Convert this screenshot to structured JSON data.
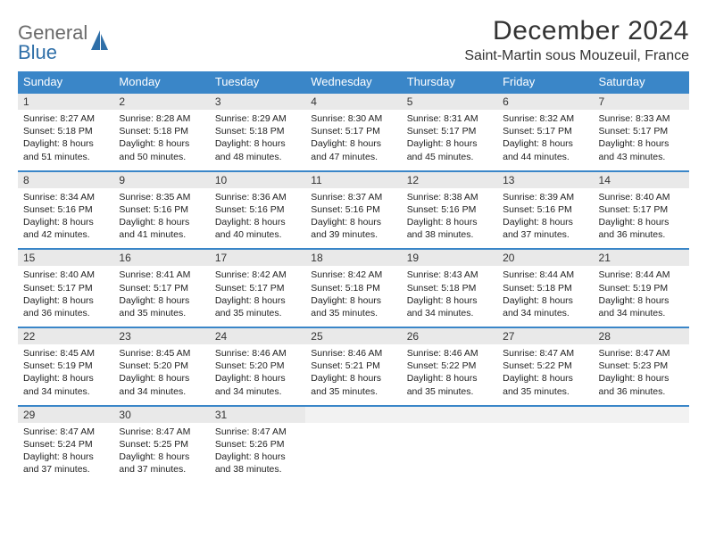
{
  "logo": {
    "text1": "General",
    "text2": "Blue"
  },
  "title": "December 2024",
  "location": "Saint-Martin sous Mouzeuil, France",
  "colors": {
    "header_bg": "#3a86c8",
    "header_text": "#ffffff",
    "daynum_bg": "#e9e9e9",
    "week_border": "#3a86c8",
    "logo_gray": "#6b6b6b",
    "logo_blue": "#2f6fa8",
    "body_text": "#222222"
  },
  "typography": {
    "title_fontsize": 30,
    "location_fontsize": 16,
    "dow_fontsize": 13,
    "daynum_fontsize": 12,
    "body_fontsize": 10.5,
    "font_family": "Arial"
  },
  "dow": [
    "Sunday",
    "Monday",
    "Tuesday",
    "Wednesday",
    "Thursday",
    "Friday",
    "Saturday"
  ],
  "weeks": [
    [
      {
        "n": "1",
        "sr": "Sunrise: 8:27 AM",
        "ss": "Sunset: 5:18 PM",
        "dl": "Daylight: 8 hours and 51 minutes."
      },
      {
        "n": "2",
        "sr": "Sunrise: 8:28 AM",
        "ss": "Sunset: 5:18 PM",
        "dl": "Daylight: 8 hours and 50 minutes."
      },
      {
        "n": "3",
        "sr": "Sunrise: 8:29 AM",
        "ss": "Sunset: 5:18 PM",
        "dl": "Daylight: 8 hours and 48 minutes."
      },
      {
        "n": "4",
        "sr": "Sunrise: 8:30 AM",
        "ss": "Sunset: 5:17 PM",
        "dl": "Daylight: 8 hours and 47 minutes."
      },
      {
        "n": "5",
        "sr": "Sunrise: 8:31 AM",
        "ss": "Sunset: 5:17 PM",
        "dl": "Daylight: 8 hours and 45 minutes."
      },
      {
        "n": "6",
        "sr": "Sunrise: 8:32 AM",
        "ss": "Sunset: 5:17 PM",
        "dl": "Daylight: 8 hours and 44 minutes."
      },
      {
        "n": "7",
        "sr": "Sunrise: 8:33 AM",
        "ss": "Sunset: 5:17 PM",
        "dl": "Daylight: 8 hours and 43 minutes."
      }
    ],
    [
      {
        "n": "8",
        "sr": "Sunrise: 8:34 AM",
        "ss": "Sunset: 5:16 PM",
        "dl": "Daylight: 8 hours and 42 minutes."
      },
      {
        "n": "9",
        "sr": "Sunrise: 8:35 AM",
        "ss": "Sunset: 5:16 PM",
        "dl": "Daylight: 8 hours and 41 minutes."
      },
      {
        "n": "10",
        "sr": "Sunrise: 8:36 AM",
        "ss": "Sunset: 5:16 PM",
        "dl": "Daylight: 8 hours and 40 minutes."
      },
      {
        "n": "11",
        "sr": "Sunrise: 8:37 AM",
        "ss": "Sunset: 5:16 PM",
        "dl": "Daylight: 8 hours and 39 minutes."
      },
      {
        "n": "12",
        "sr": "Sunrise: 8:38 AM",
        "ss": "Sunset: 5:16 PM",
        "dl": "Daylight: 8 hours and 38 minutes."
      },
      {
        "n": "13",
        "sr": "Sunrise: 8:39 AM",
        "ss": "Sunset: 5:16 PM",
        "dl": "Daylight: 8 hours and 37 minutes."
      },
      {
        "n": "14",
        "sr": "Sunrise: 8:40 AM",
        "ss": "Sunset: 5:17 PM",
        "dl": "Daylight: 8 hours and 36 minutes."
      }
    ],
    [
      {
        "n": "15",
        "sr": "Sunrise: 8:40 AM",
        "ss": "Sunset: 5:17 PM",
        "dl": "Daylight: 8 hours and 36 minutes."
      },
      {
        "n": "16",
        "sr": "Sunrise: 8:41 AM",
        "ss": "Sunset: 5:17 PM",
        "dl": "Daylight: 8 hours and 35 minutes."
      },
      {
        "n": "17",
        "sr": "Sunrise: 8:42 AM",
        "ss": "Sunset: 5:17 PM",
        "dl": "Daylight: 8 hours and 35 minutes."
      },
      {
        "n": "18",
        "sr": "Sunrise: 8:42 AM",
        "ss": "Sunset: 5:18 PM",
        "dl": "Daylight: 8 hours and 35 minutes."
      },
      {
        "n": "19",
        "sr": "Sunrise: 8:43 AM",
        "ss": "Sunset: 5:18 PM",
        "dl": "Daylight: 8 hours and 34 minutes."
      },
      {
        "n": "20",
        "sr": "Sunrise: 8:44 AM",
        "ss": "Sunset: 5:18 PM",
        "dl": "Daylight: 8 hours and 34 minutes."
      },
      {
        "n": "21",
        "sr": "Sunrise: 8:44 AM",
        "ss": "Sunset: 5:19 PM",
        "dl": "Daylight: 8 hours and 34 minutes."
      }
    ],
    [
      {
        "n": "22",
        "sr": "Sunrise: 8:45 AM",
        "ss": "Sunset: 5:19 PM",
        "dl": "Daylight: 8 hours and 34 minutes."
      },
      {
        "n": "23",
        "sr": "Sunrise: 8:45 AM",
        "ss": "Sunset: 5:20 PM",
        "dl": "Daylight: 8 hours and 34 minutes."
      },
      {
        "n": "24",
        "sr": "Sunrise: 8:46 AM",
        "ss": "Sunset: 5:20 PM",
        "dl": "Daylight: 8 hours and 34 minutes."
      },
      {
        "n": "25",
        "sr": "Sunrise: 8:46 AM",
        "ss": "Sunset: 5:21 PM",
        "dl": "Daylight: 8 hours and 35 minutes."
      },
      {
        "n": "26",
        "sr": "Sunrise: 8:46 AM",
        "ss": "Sunset: 5:22 PM",
        "dl": "Daylight: 8 hours and 35 minutes."
      },
      {
        "n": "27",
        "sr": "Sunrise: 8:47 AM",
        "ss": "Sunset: 5:22 PM",
        "dl": "Daylight: 8 hours and 35 minutes."
      },
      {
        "n": "28",
        "sr": "Sunrise: 8:47 AM",
        "ss": "Sunset: 5:23 PM",
        "dl": "Daylight: 8 hours and 36 minutes."
      }
    ],
    [
      {
        "n": "29",
        "sr": "Sunrise: 8:47 AM",
        "ss": "Sunset: 5:24 PM",
        "dl": "Daylight: 8 hours and 37 minutes."
      },
      {
        "n": "30",
        "sr": "Sunrise: 8:47 AM",
        "ss": "Sunset: 5:25 PM",
        "dl": "Daylight: 8 hours and 37 minutes."
      },
      {
        "n": "31",
        "sr": "Sunrise: 8:47 AM",
        "ss": "Sunset: 5:26 PM",
        "dl": "Daylight: 8 hours and 38 minutes."
      },
      {
        "empty": true
      },
      {
        "empty": true
      },
      {
        "empty": true
      },
      {
        "empty": true
      }
    ]
  ]
}
